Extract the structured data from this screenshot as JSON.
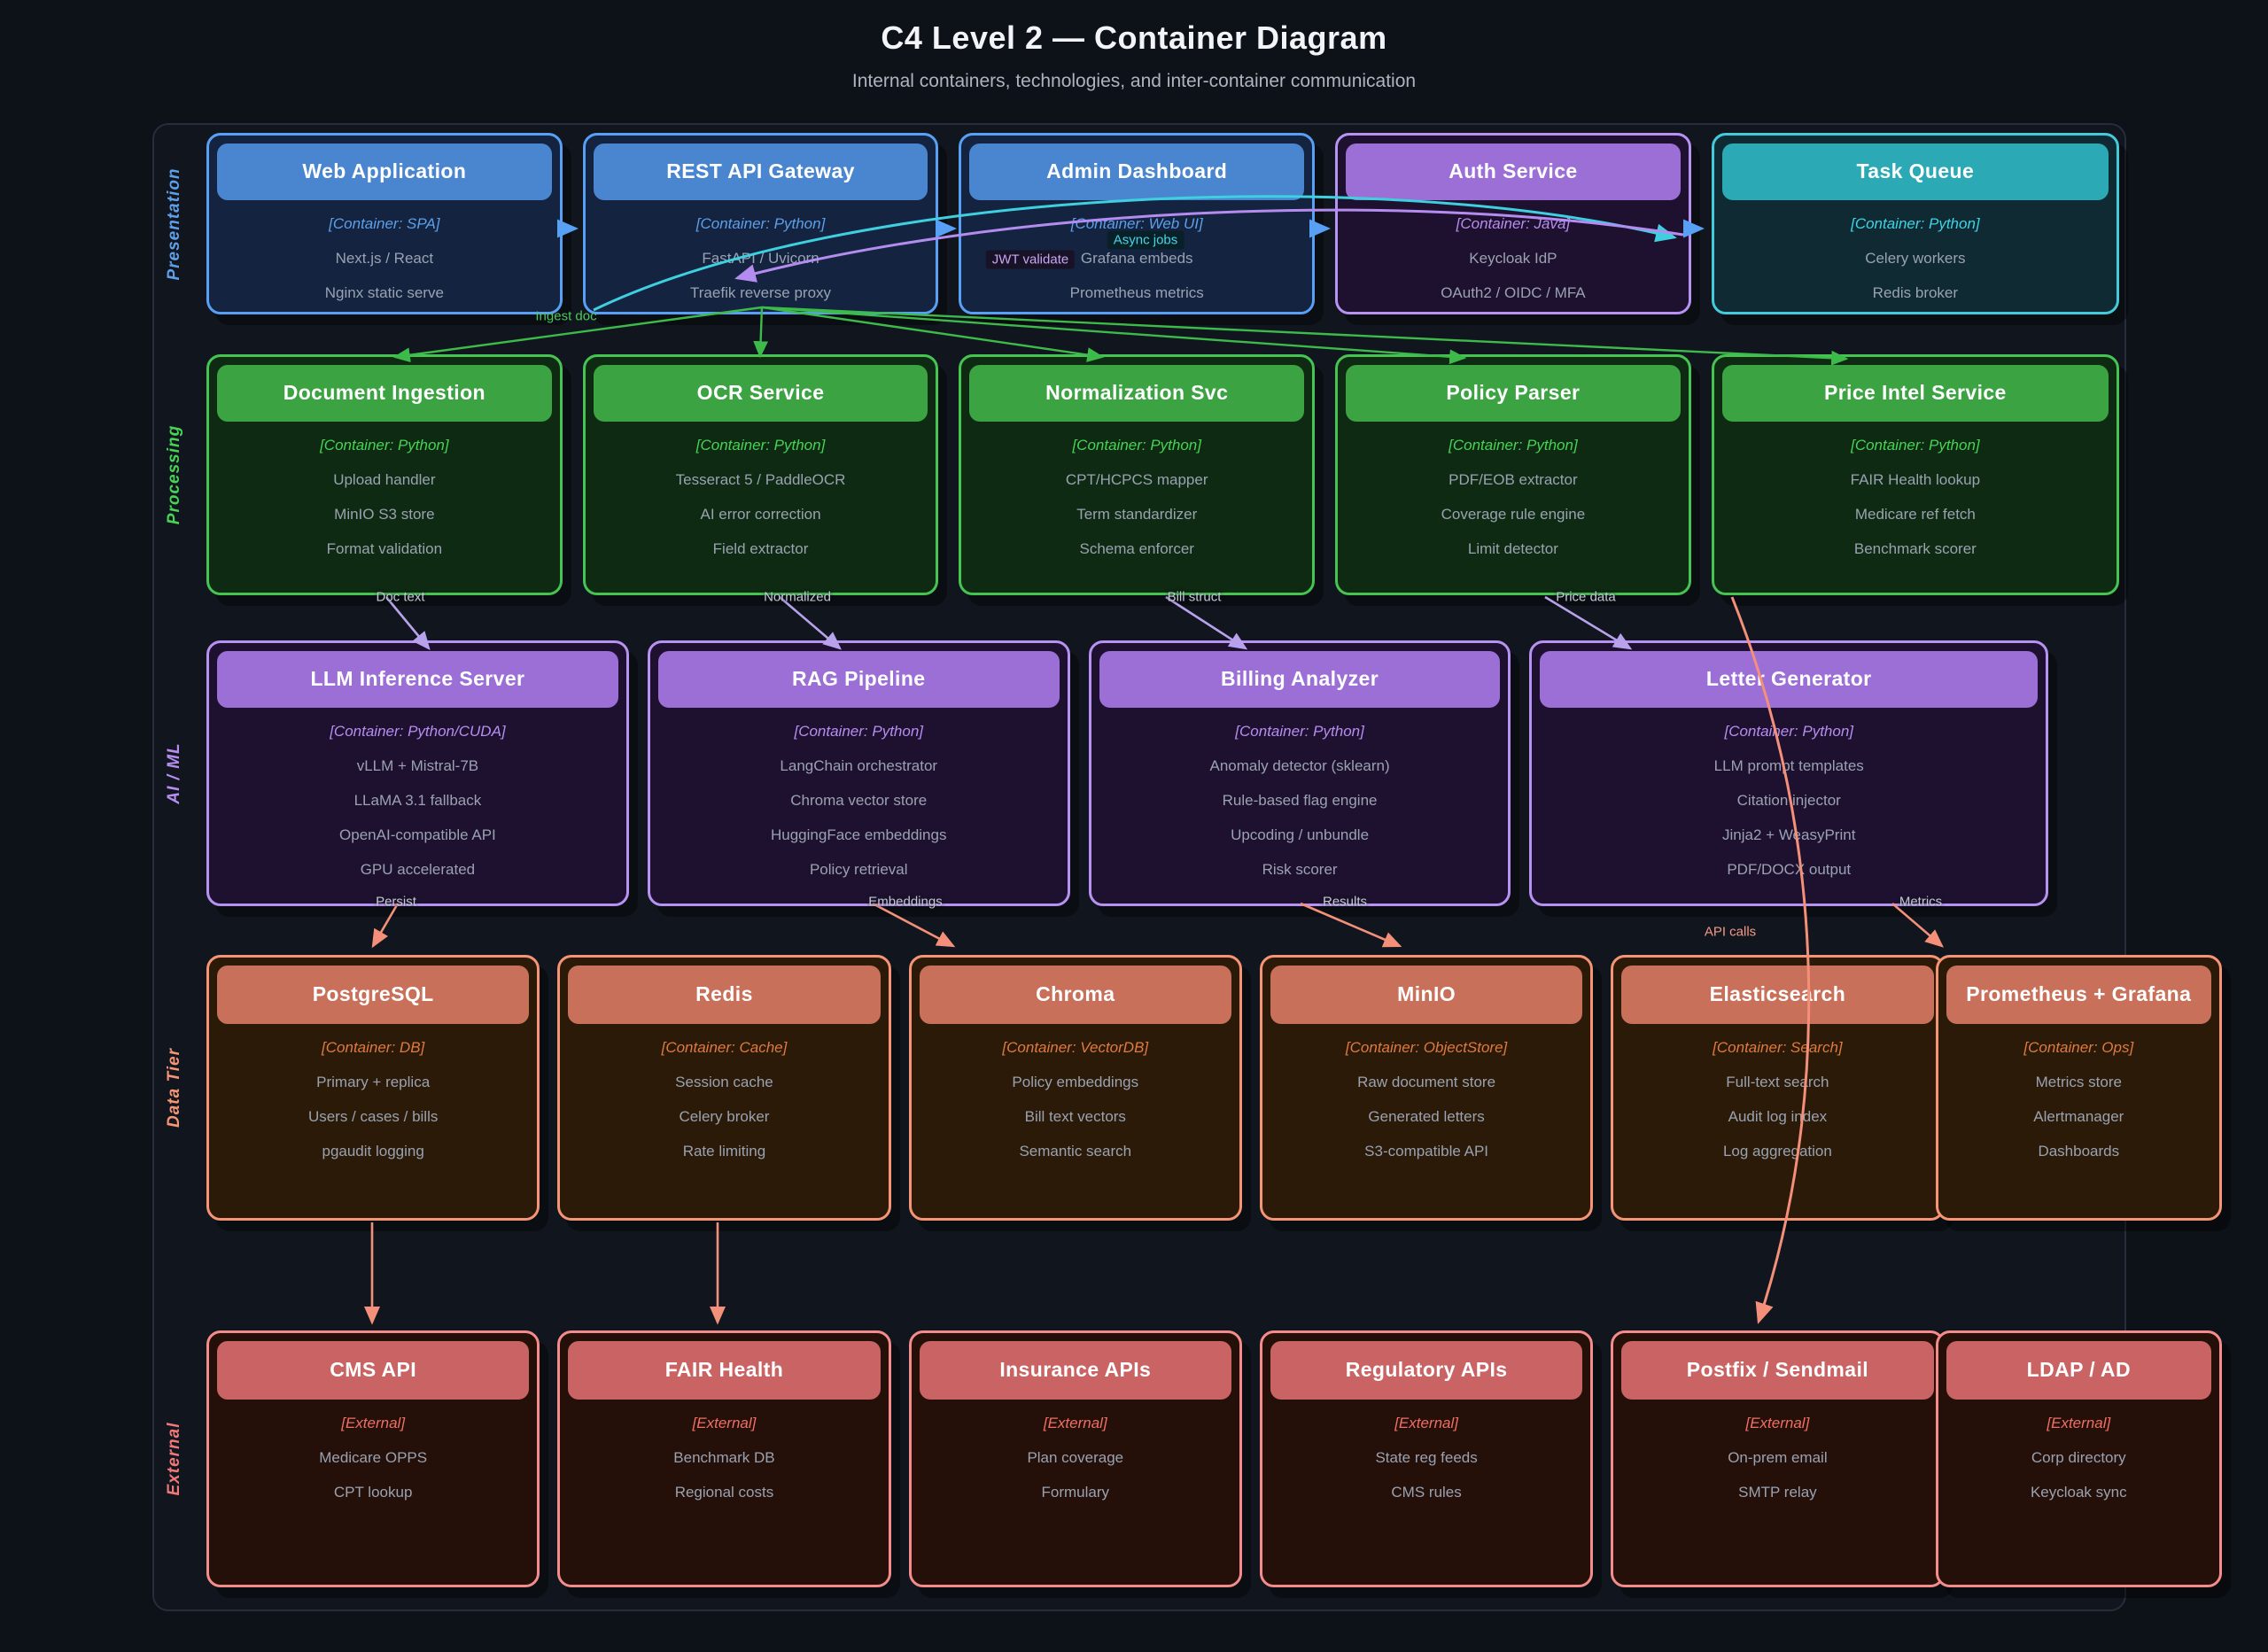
{
  "title": "C4 Level 2 — Container Diagram",
  "subtitle": "Internal containers, technologies, and inter-container communication",
  "colors": {
    "background": "#0d1118",
    "panel_border": "#272d3a",
    "blue": "#57a0f5",
    "teal": "#43cbdb",
    "green": "#46c452",
    "purple": "#b792f2",
    "orange": "#f59575",
    "red": "#f58c8c",
    "body_text": "#9aa2b1"
  },
  "tiers": [
    {
      "id": "presentation",
      "label": "Presentation",
      "accent": "blue",
      "boxes": [
        {
          "title": "Web Application",
          "container": "[Container: SPA]",
          "accent": "blue",
          "lines": [
            "Next.js / React",
            "Nginx static serve"
          ]
        },
        {
          "title": "REST API Gateway",
          "container": "[Container: Python]",
          "accent": "blue",
          "lines": [
            "FastAPI / Uvicorn",
            "Traefik reverse proxy"
          ]
        },
        {
          "title": "Admin Dashboard",
          "container": "[Container: Web UI]",
          "accent": "blue",
          "lines": [
            "Grafana embeds",
            "Prometheus metrics"
          ]
        },
        {
          "title": "Auth Service",
          "container": "[Container: Java]",
          "accent": "purple",
          "lines": [
            "Keycloak IdP",
            "OAuth2 / OIDC / MFA"
          ]
        },
        {
          "title": "Task Queue",
          "container": "[Container: Python]",
          "accent": "teal",
          "lines": [
            "Celery workers",
            "Redis broker"
          ]
        }
      ]
    },
    {
      "id": "processing",
      "label": "Processing",
      "accent": "green",
      "boxes": [
        {
          "title": "Document Ingestion",
          "container": "[Container: Python]",
          "accent": "green",
          "lines": [
            "Upload handler",
            "MinIO S3 store",
            "Format validation"
          ]
        },
        {
          "title": "OCR Service",
          "container": "[Container: Python]",
          "accent": "green",
          "lines": [
            "Tesseract 5 / PaddleOCR",
            "AI error correction",
            "Field extractor"
          ]
        },
        {
          "title": "Normalization Svc",
          "container": "[Container: Python]",
          "accent": "green",
          "lines": [
            "CPT/HCPCS mapper",
            "Term standardizer",
            "Schema enforcer"
          ]
        },
        {
          "title": "Policy Parser",
          "container": "[Container: Python]",
          "accent": "green",
          "lines": [
            "PDF/EOB extractor",
            "Coverage rule engine",
            "Limit detector"
          ]
        },
        {
          "title": "Price Intel Service",
          "container": "[Container: Python]",
          "accent": "green",
          "lines": [
            "FAIR Health lookup",
            "Medicare ref fetch",
            "Benchmark scorer"
          ]
        }
      ]
    },
    {
      "id": "aiml",
      "label": "AI / ML",
      "accent": "purple",
      "boxes": [
        {
          "title": "LLM Inference Server",
          "container": "[Container: Python/CUDA]",
          "accent": "purple",
          "lines": [
            "vLLM + Mistral-7B",
            "LLaMA 3.1 fallback",
            "OpenAI-compatible API",
            "GPU accelerated"
          ]
        },
        {
          "title": "RAG Pipeline",
          "container": "[Container: Python]",
          "accent": "purple",
          "lines": [
            "LangChain orchestrator",
            "Chroma vector store",
            "HuggingFace embeddings",
            "Policy retrieval"
          ]
        },
        {
          "title": "Billing Analyzer",
          "container": "[Container: Python]",
          "accent": "purple",
          "lines": [
            "Anomaly detector (sklearn)",
            "Rule-based flag engine",
            "Upcoding / unbundle",
            "Risk scorer"
          ]
        },
        {
          "title": "Letter Generator",
          "container": "[Container: Python]",
          "accent": "purple",
          "lines": [
            "LLM prompt templates",
            "Citation injector",
            "Jinja2 + WeasyPrint",
            "PDF/DOCX output"
          ]
        }
      ]
    },
    {
      "id": "data",
      "label": "Data Tier",
      "accent": "orange",
      "boxes": [
        {
          "title": "PostgreSQL",
          "container": "[Container: DB]",
          "accent": "orange",
          "lines": [
            "Primary + replica",
            "Users / cases / bills",
            "pgaudit logging"
          ]
        },
        {
          "title": "Redis",
          "container": "[Container: Cache]",
          "accent": "orange",
          "lines": [
            "Session cache",
            "Celery broker",
            "Rate limiting"
          ]
        },
        {
          "title": "Chroma",
          "container": "[Container: VectorDB]",
          "accent": "orange",
          "lines": [
            "Policy embeddings",
            "Bill text vectors",
            "Semantic search"
          ]
        },
        {
          "title": "MinIO",
          "container": "[Container: ObjectStore]",
          "accent": "orange",
          "lines": [
            "Raw document store",
            "Generated letters",
            "S3-compatible API"
          ]
        },
        {
          "title": "Elasticsearch",
          "container": "[Container: Search]",
          "accent": "orange",
          "lines": [
            "Full-text search",
            "Audit log index",
            "Log aggregation"
          ]
        },
        {
          "title": "Prometheus + Grafana",
          "container": "[Container: Ops]",
          "accent": "orange",
          "lines": [
            "Metrics store",
            "Alertmanager",
            "Dashboards"
          ]
        }
      ]
    },
    {
      "id": "external",
      "label": "External",
      "accent": "red",
      "boxes": [
        {
          "title": "CMS API",
          "container": "[External]",
          "accent": "red",
          "lines": [
            "Medicare OPPS",
            "CPT lookup"
          ]
        },
        {
          "title": "FAIR Health",
          "container": "[External]",
          "accent": "red",
          "lines": [
            "Benchmark DB",
            "Regional costs"
          ]
        },
        {
          "title": "Insurance APIs",
          "container": "[External]",
          "accent": "red",
          "lines": [
            "Plan coverage",
            "Formulary"
          ]
        },
        {
          "title": "Regulatory APIs",
          "container": "[External]",
          "accent": "red",
          "lines": [
            "State reg feeds",
            "CMS rules"
          ]
        },
        {
          "title": "Postfix / Sendmail",
          "container": "[External]",
          "accent": "red",
          "lines": [
            "On-prem email",
            "SMTP relay"
          ]
        },
        {
          "title": "LDAP / AD",
          "container": "[External]",
          "accent": "red",
          "lines": [
            "Corp directory",
            "Keycloak sync"
          ]
        }
      ]
    }
  ],
  "edge_labels": [
    {
      "id": "ingest-doc",
      "text": "Ingest doc",
      "style": "green"
    },
    {
      "id": "jwt-validate",
      "text": "JWT validate",
      "style": "chip-purple"
    },
    {
      "id": "async-jobs",
      "text": "Async jobs",
      "style": "chip-teal"
    },
    {
      "id": "doc-text",
      "text": "Doc text",
      "style": "gray"
    },
    {
      "id": "normalized",
      "text": "Normalized",
      "style": "gray"
    },
    {
      "id": "bill-struct",
      "text": "Bill struct",
      "style": "gray"
    },
    {
      "id": "price-data",
      "text": "Price data",
      "style": "gray"
    },
    {
      "id": "persist",
      "text": "Persist",
      "style": "gray"
    },
    {
      "id": "embeddings",
      "text": "Embeddings",
      "style": "gray"
    },
    {
      "id": "results",
      "text": "Results",
      "style": "gray"
    },
    {
      "id": "metrics",
      "text": "Metrics",
      "style": "gray"
    },
    {
      "id": "api-calls",
      "text": "API calls",
      "style": "salmon"
    }
  ]
}
